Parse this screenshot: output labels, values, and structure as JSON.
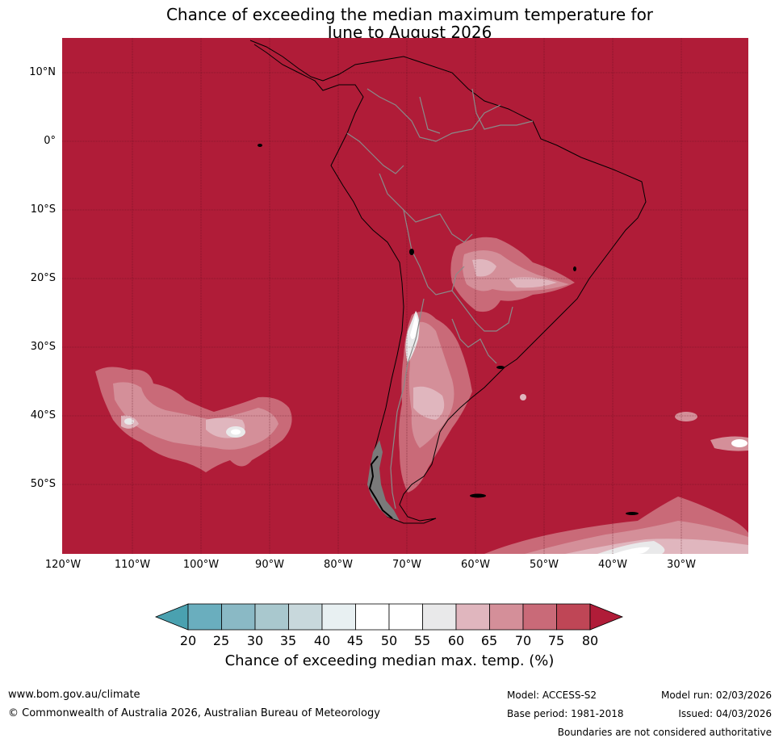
{
  "title": {
    "line1": "Chance of exceeding the median maximum temperature for",
    "line2": "June to August 2026"
  },
  "map": {
    "lat_labels": [
      "10°N",
      "0°",
      "10°S",
      "20°S",
      "30°S",
      "40°S",
      "50°S"
    ],
    "lon_labels": [
      "120°W",
      "110°W",
      "100°W",
      "90°W",
      "80°W",
      "70°W",
      "60°W",
      "50°W",
      "40°W",
      "30°W"
    ],
    "background_class_color": "#b01c38"
  },
  "colorbar": {
    "ticks": [
      "20",
      "25",
      "30",
      "35",
      "40",
      "45",
      "50",
      "55",
      "60",
      "65",
      "70",
      "75",
      "80"
    ],
    "colors": [
      "#4aa1b0",
      "#6aaebe",
      "#8ab9c5",
      "#a9c8ce",
      "#c8d8dc",
      "#e8f0f2",
      "#ffffff",
      "#ffffff",
      "#e9e9ea",
      "#e0b6be",
      "#d48f99",
      "#c96a78",
      "#bf4656",
      "#b01c38"
    ],
    "title": "Chance of exceeding median max. temp. (%)"
  },
  "footer": {
    "website": "www.bom.gov.au/climate",
    "copyright": "© Commonwealth of Australia 2026, Australian Bureau of Meteorology",
    "model": "Model: ACCESS-S2",
    "base_period": "Base period: 1981-2018",
    "model_run": "Model run: 02/03/2026",
    "issued": "Issued: 04/03/2026",
    "disclaimer": "Boundaries are not considered authoritative"
  }
}
